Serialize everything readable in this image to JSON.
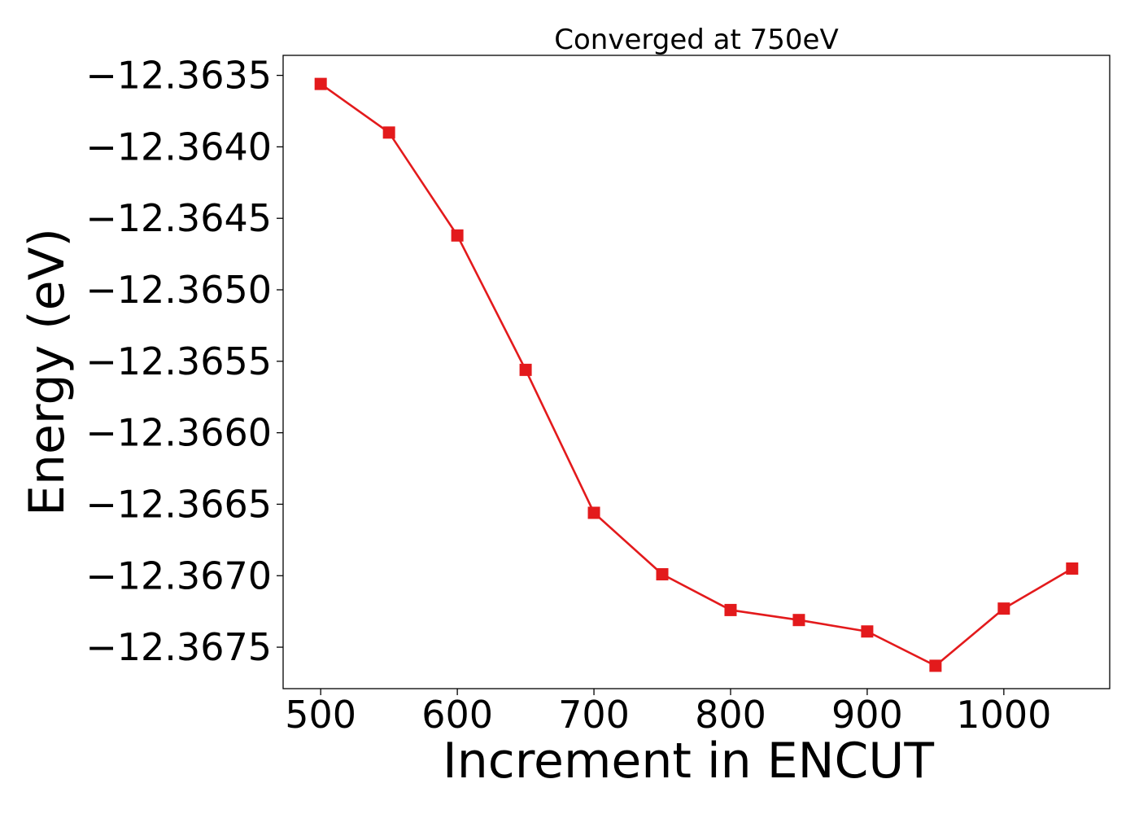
{
  "chart_data": {
    "type": "line",
    "title": "Converged at 750eV",
    "xlabel": "Increment in ENCUT",
    "ylabel": "Energy (eV)",
    "x": [
      500,
      550,
      600,
      650,
      700,
      750,
      800,
      850,
      900,
      950,
      1000,
      1050
    ],
    "series": [
      {
        "values": [
          -12.36356,
          -12.3639,
          -12.36462,
          -12.36556,
          -12.36656,
          -12.36699,
          -12.36724,
          -12.36731,
          -12.36739,
          -12.36763,
          -12.36723,
          -12.36695
        ],
        "color": "#e31a1c",
        "marker": "square"
      }
    ],
    "xlim": [
      472.5,
      1077.5
    ],
    "ylim": [
      -12.36779,
      -12.36336
    ],
    "xticks": [
      500,
      600,
      700,
      800,
      900,
      1000
    ],
    "xtick_labels": [
      "500",
      "600",
      "700",
      "800",
      "900",
      "1000"
    ],
    "yticks": [
      -12.3635,
      -12.364,
      -12.3645,
      -12.365,
      -12.3655,
      -12.366,
      -12.3665,
      -12.367,
      -12.3675
    ],
    "ytick_labels": [
      "−12.3635",
      "−12.3640",
      "−12.3645",
      "−12.3650",
      "−12.3655",
      "−12.3660",
      "−12.3665",
      "−12.3670",
      "−12.3675"
    ],
    "grid": false,
    "legend": "none"
  }
}
